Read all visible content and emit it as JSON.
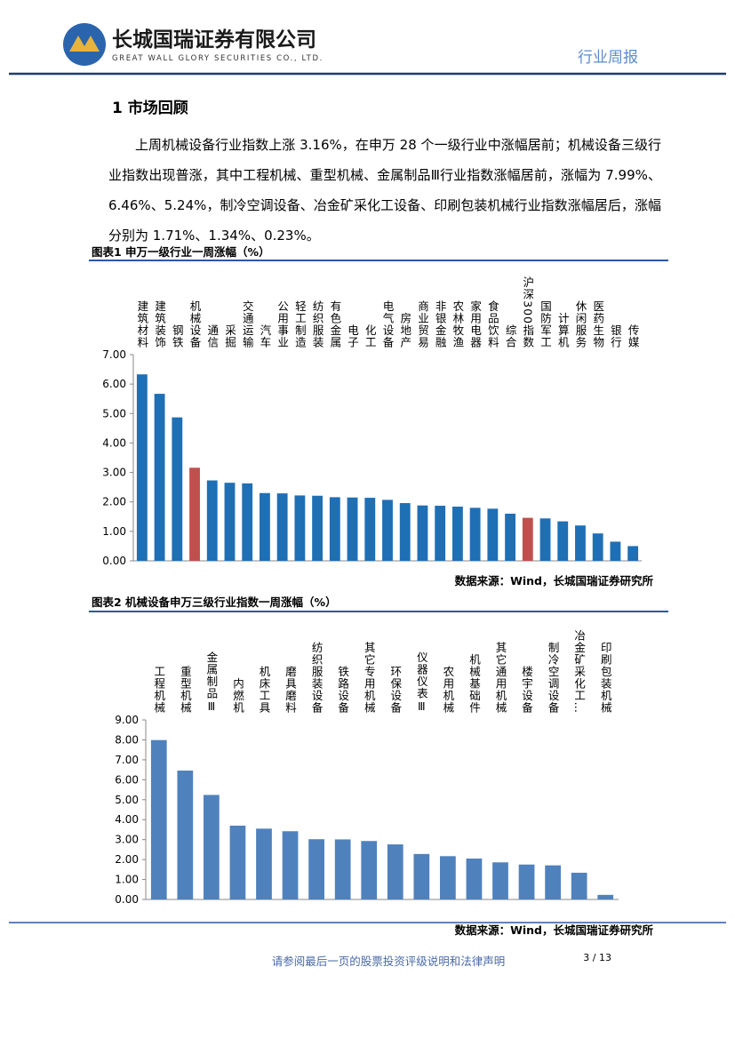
{
  "header": {
    "company": "长城国瑞证券有限公司",
    "company_en": "GREAT WALL GLORY SECURITIES CO., LTD.",
    "report_type": "行业周报"
  },
  "section_title": "1 市场回顾",
  "paragraph": "上周机械设备行业指数上涨 3.16%，在申万 28 个一级行业中涨幅居前；机械设备三级行业指数出现普涨，其中工程机械、重型机械、金属制品Ⅲ行业指数涨幅居前，涨幅为 7.99%、6.46%、5.24%，制冷空调设备、冶金矿采化工设备、印刷包装机械行业指数涨幅居后，涨幅分别为 1.71%、1.34%、0.23%。",
  "chart_data": [
    {
      "type": "bar",
      "title": "图表1 申万一级行业一周涨幅（%）",
      "categories": [
        "建筑材料",
        "建筑装饰",
        "钢铁",
        "机械设备",
        "通信",
        "采掘",
        "交通运输",
        "汽车",
        "公用事业",
        "轻工制造",
        "纺织服装",
        "有色金属",
        "电子",
        "化工",
        "电气设备",
        "房地产",
        "商业贸易",
        "非银金融",
        "农林牧渔",
        "家用电器",
        "食品饮料",
        "综合",
        "沪深300指数",
        "国防军工",
        "计算机",
        "休闲服务",
        "医药生物",
        "银行",
        "传媒"
      ],
      "values": [
        6.33,
        5.67,
        4.87,
        3.16,
        2.73,
        2.65,
        2.63,
        2.3,
        2.29,
        2.22,
        2.21,
        2.16,
        2.15,
        2.14,
        2.07,
        1.96,
        1.88,
        1.87,
        1.84,
        1.8,
        1.77,
        1.6,
        1.46,
        1.44,
        1.34,
        1.2,
        0.93,
        0.65,
        0.5
      ],
      "colors": [
        "#1f6fb5",
        "#1f6fb5",
        "#1f6fb5",
        "#c0504d",
        "#1f6fb5",
        "#1f6fb5",
        "#1f6fb5",
        "#1f6fb5",
        "#1f6fb5",
        "#1f6fb5",
        "#1f6fb5",
        "#1f6fb5",
        "#1f6fb5",
        "#1f6fb5",
        "#1f6fb5",
        "#1f6fb5",
        "#1f6fb5",
        "#1f6fb5",
        "#1f6fb5",
        "#1f6fb5",
        "#1f6fb5",
        "#1f6fb5",
        "#c0504d",
        "#1f6fb5",
        "#1f6fb5",
        "#1f6fb5",
        "#1f6fb5",
        "#1f6fb5",
        "#1f6fb5"
      ],
      "ylim": [
        0,
        7
      ],
      "yticks": [
        {
          "value": 0,
          "label": "0.00"
        },
        {
          "value": 1,
          "label": "1.00"
        },
        {
          "value": 2,
          "label": "2.00"
        },
        {
          "value": 3,
          "label": "3.00"
        },
        {
          "value": 4,
          "label": "4.00"
        },
        {
          "value": 5,
          "label": "5.00"
        },
        {
          "value": 6,
          "label": "6.00"
        },
        {
          "value": 7,
          "label": "7.00"
        }
      ],
      "grid": false,
      "source": "数据来源：Wind，长城国瑞证券研究所"
    },
    {
      "type": "bar",
      "title": "图表2 机械设备申万三级行业指数一周涨幅（%）",
      "categories": [
        "工程机械",
        "重型机械",
        "金属制品Ⅲ",
        "内燃机",
        "机床工具",
        "磨具磨料",
        "纺织服装设备",
        "铁路设备",
        "其它专用机械",
        "环保设备",
        "仪器仪表Ⅲ",
        "农用机械",
        "机械基础件",
        "其它通用机械",
        "楼宇设备",
        "制冷空调设备",
        "冶金矿采化工…",
        "印刷包装机械"
      ],
      "values": [
        7.99,
        6.46,
        5.24,
        3.7,
        3.55,
        3.42,
        3.02,
        3.01,
        2.93,
        2.76,
        2.28,
        2.17,
        2.05,
        1.86,
        1.75,
        1.71,
        1.34,
        0.23
      ],
      "color": "#4f81bd",
      "ylim": [
        0,
        9
      ],
      "yticks": [
        {
          "value": 0,
          "label": "0.00"
        },
        {
          "value": 1,
          "label": "1.00"
        },
        {
          "value": 2,
          "label": "2.00"
        },
        {
          "value": 3,
          "label": "3.00"
        },
        {
          "value": 4,
          "label": "4.00"
        },
        {
          "value": 5,
          "label": "5.00"
        },
        {
          "value": 6,
          "label": "6.00"
        },
        {
          "value": 7,
          "label": "7.00"
        },
        {
          "value": 8,
          "label": "8.00"
        },
        {
          "value": 9,
          "label": "9.00"
        }
      ],
      "grid": false,
      "source": "数据来源：Wind，长城国瑞证券研究所"
    }
  ],
  "footer": {
    "disclaimer": "请参阅最后一页的股票投资评级说明和法律声明",
    "page": "3 / 13"
  }
}
